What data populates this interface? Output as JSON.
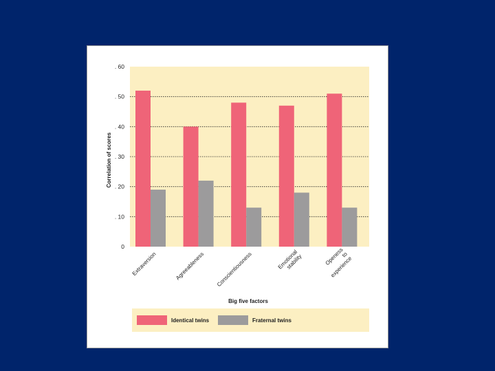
{
  "chart_data": {
    "type": "bar",
    "categories": [
      "Extraversion",
      "Agreeableness",
      "Conscientiousness",
      "Emotional stability",
      "Openess to experience"
    ],
    "category_lines": [
      [
        "Extraversion"
      ],
      [
        "Agreeableness"
      ],
      [
        "Conscientiousness"
      ],
      [
        "Emotional",
        "stability"
      ],
      [
        "Openess",
        "to",
        "experience"
      ]
    ],
    "series": [
      {
        "name": "Identical twins",
        "values": [
          0.52,
          0.4,
          0.48,
          0.47,
          0.51
        ],
        "color": "#ef6478"
      },
      {
        "name": "Fraternal twins",
        "values": [
          0.19,
          0.22,
          0.13,
          0.18,
          0.13
        ],
        "color": "#9c9b9c"
      }
    ],
    "ylim": [
      0,
      0.6
    ],
    "yticks": [
      0,
      0.1,
      0.2,
      0.3,
      0.4,
      0.5,
      0.6
    ],
    "ytick_labels": [
      "0",
      ". 10",
      ". 20",
      ". 30",
      ". 40",
      ". 50",
      ". 60"
    ],
    "ylabel": "Correlation of scores",
    "xlabel": "Big five factors",
    "grid": "horizontal dotted",
    "legend_position": "bottom",
    "plot_background": "#fcefc2"
  },
  "colors": {
    "slide_background": "#00246b",
    "card_background": "#ffffff",
    "legend_background": "#fcefc2",
    "text": "#1f1f1f"
  }
}
